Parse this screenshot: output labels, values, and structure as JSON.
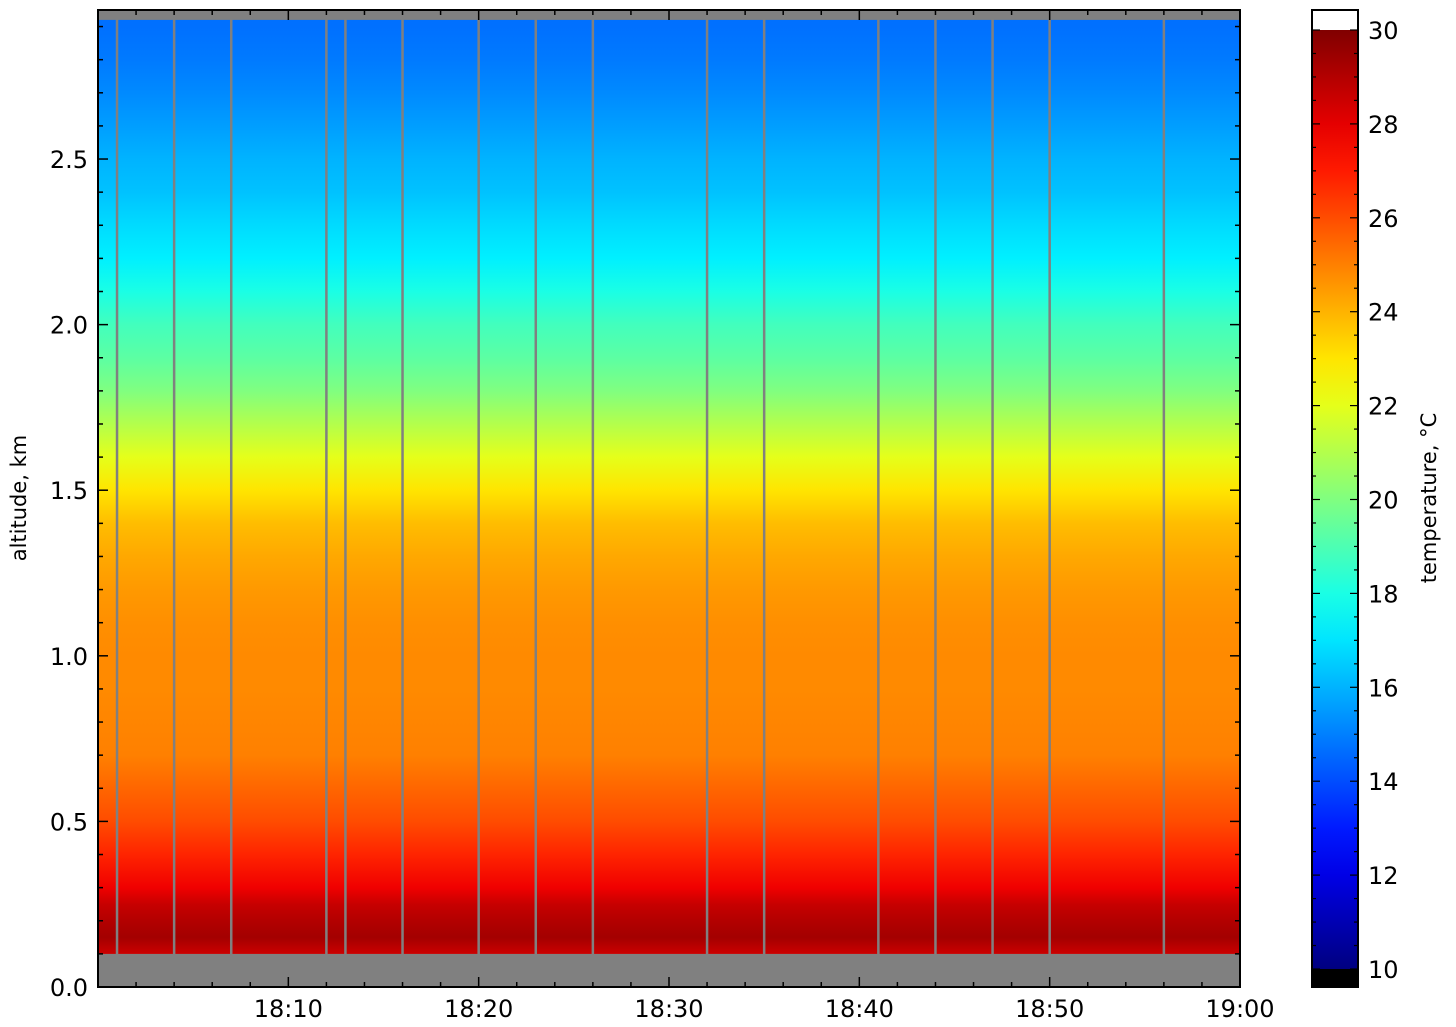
{
  "chart_data": {
    "type": "heatmap",
    "title": "",
    "xlabel": "",
    "ylabel": "altitude, km",
    "x_range": [
      "18:00",
      "19:00"
    ],
    "y_range_km": [
      0.0,
      2.95
    ],
    "x_ticks": [
      "18:10",
      "18:20",
      "18:30",
      "18:40",
      "18:50",
      "19:00"
    ],
    "y_ticks": [
      "0.0",
      "0.5",
      "1.0",
      "1.5",
      "2.0",
      "2.5"
    ],
    "colorbar": {
      "label": "temperature, °C",
      "range": [
        10,
        30
      ],
      "ticks": [
        "10",
        "12",
        "14",
        "16",
        "18",
        "20",
        "22",
        "24",
        "26",
        "28",
        "30"
      ],
      "colormap": "jet",
      "over_color": "#ffffff",
      "under_color": "#000000"
    },
    "no_data_color": "#808080",
    "no_data_altitude_below_km": 0.1,
    "no_data_altitude_above_km": 2.92,
    "gap_times": [
      "18:01",
      "18:04",
      "18:07",
      "18:12",
      "18:13",
      "18:16",
      "18:20",
      "18:23",
      "18:26",
      "18:32",
      "18:35",
      "18:41",
      "18:44",
      "18:47",
      "18:50",
      "18:56"
    ],
    "altitudes_km": [
      0.1,
      0.15,
      0.2,
      0.25,
      0.3,
      0.4,
      0.5,
      0.6,
      0.7,
      0.8,
      0.9,
      1.0,
      1.1,
      1.2,
      1.3,
      1.4,
      1.5,
      1.6,
      1.7,
      1.8,
      1.9,
      2.0,
      2.1,
      2.2,
      2.3,
      2.4,
      2.5,
      2.6,
      2.7,
      2.8,
      2.9
    ],
    "temperature_c": [
      28.5,
      29.3,
      29.0,
      28.6,
      27.8,
      26.8,
      26.0,
      25.5,
      25.0,
      24.9,
      24.8,
      24.8,
      24.7,
      24.5,
      24.2,
      23.8,
      23.0,
      22.0,
      21.0,
      20.0,
      19.3,
      18.8,
      18.0,
      17.2,
      16.8,
      16.3,
      16.0,
      15.6,
      15.2,
      14.9,
      14.7
    ]
  }
}
